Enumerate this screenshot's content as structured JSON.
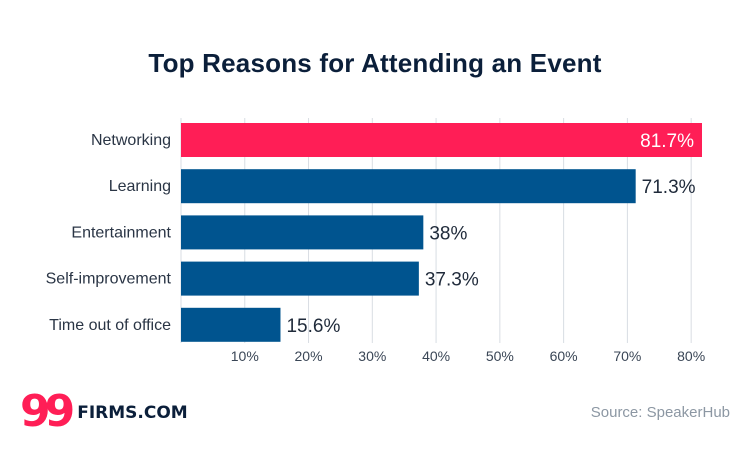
{
  "chart_data": {
    "type": "bar",
    "orientation": "horizontal",
    "title": "Top Reasons for Attending an Event",
    "categories": [
      "Networking",
      "Learning",
      "Entertainment",
      "Self-improvement",
      "Time out of office"
    ],
    "values": [
      81.7,
      71.3,
      38,
      37.3,
      15.6
    ],
    "value_labels": [
      "81.7%",
      "71.3%",
      "38%",
      "37.3%",
      "15.6%"
    ],
    "x_ticks": [
      10,
      20,
      30,
      40,
      50,
      60,
      70,
      80
    ],
    "x_tick_labels": [
      "10%",
      "20%",
      "30%",
      "40%",
      "50%",
      "60%",
      "70%",
      "80%"
    ],
    "xlim": [
      0,
      81.7
    ],
    "grid": true,
    "colors": {
      "highlight": "#ff1e56",
      "default": "#00548f",
      "label_on_bar": "#ffffff",
      "label_outside": "#1f2a3a",
      "gridline": "#d8dde3"
    },
    "highlight_index": 0
  },
  "logo": {
    "number": "99",
    "text": "FIRMS.COM",
    "number_color": "#ff1e56",
    "text_color": "#0b1f3a"
  },
  "source": "Source: SpeakerHub"
}
